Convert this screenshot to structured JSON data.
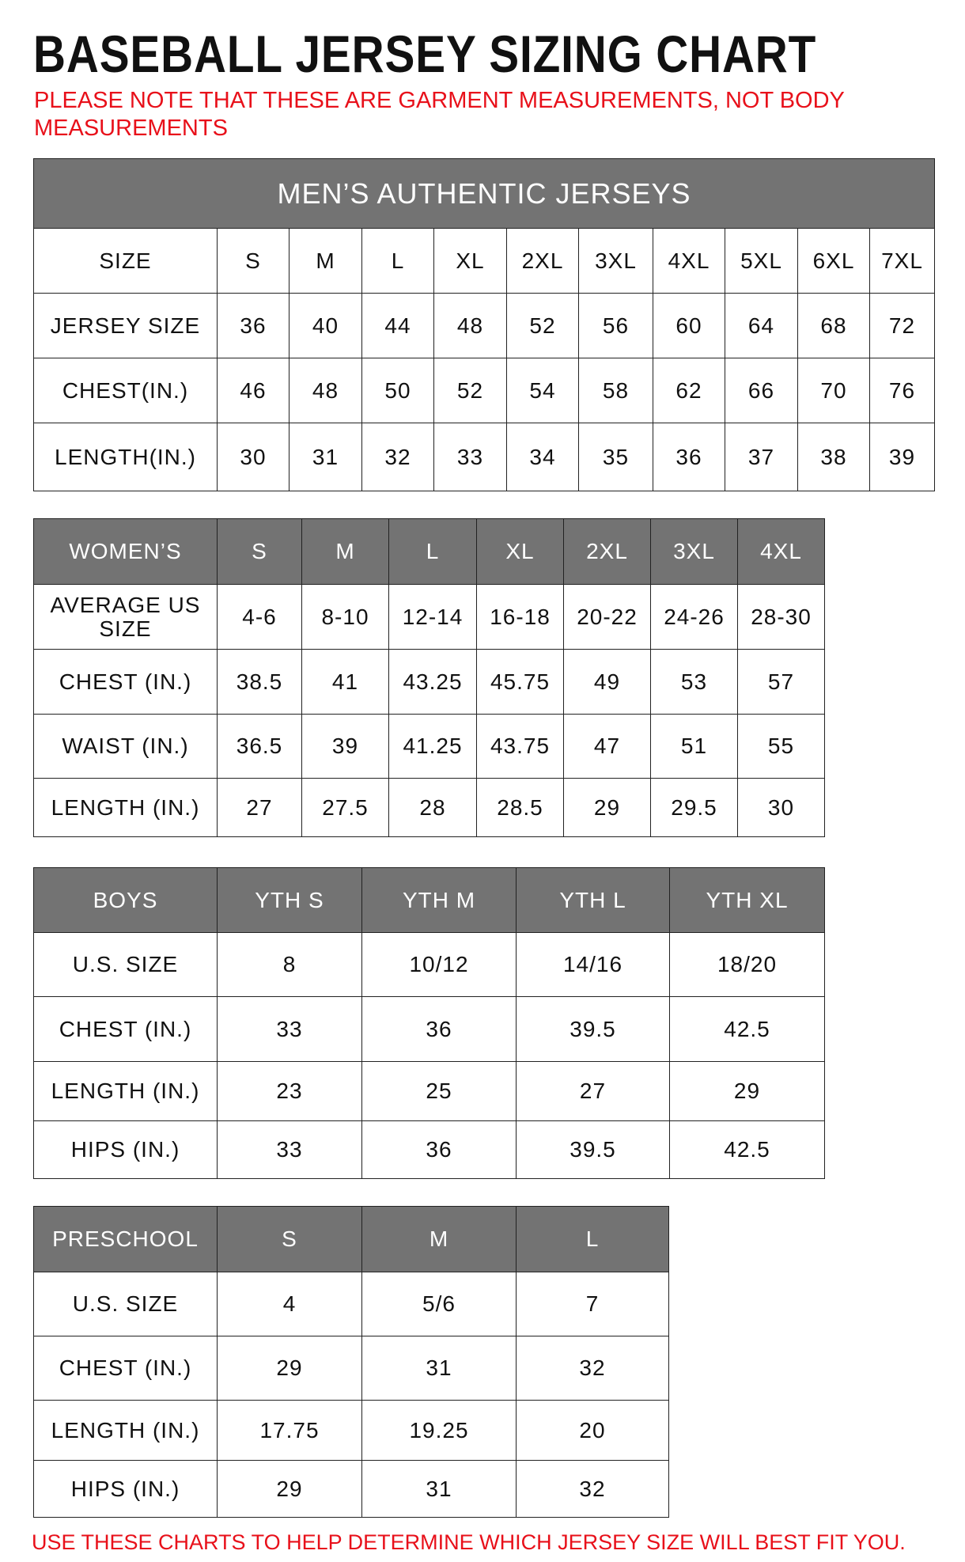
{
  "title": "BASEBALL JERSEY SIZING CHART",
  "note": "PLEASE NOTE THAT THESE ARE GARMENT MEASUREMENTS, NOT BODY MEASUREMENTS",
  "footer": "USE THESE CHARTS TO HELP DETERMINE WHICH JERSEY SIZE WILL BEST FIT YOU.",
  "colors": {
    "header_bg": "#737373",
    "note_red": "#e8101a"
  },
  "mens": {
    "caption": "MEN’S AUTHENTIC JERSEYS",
    "header": [
      "SIZE",
      "S",
      "M",
      "L",
      "XL",
      "2XL",
      "3XL",
      "4XL",
      "5XL",
      "6XL",
      "7XL"
    ],
    "rows": [
      [
        "JERSEY SIZE",
        "36",
        "40",
        "44",
        "48",
        "52",
        "56",
        "60",
        "64",
        "68",
        "72"
      ],
      [
        "CHEST(IN.)",
        "46",
        "48",
        "50",
        "52",
        "54",
        "58",
        "62",
        "66",
        "70",
        "76"
      ],
      [
        "LENGTH(IN.)",
        "30",
        "31",
        "32",
        "33",
        "34",
        "35",
        "36",
        "37",
        "38",
        "39"
      ]
    ]
  },
  "womens": {
    "header": [
      "WOMEN’S",
      "S",
      "M",
      "L",
      "XL",
      "2XL",
      "3XL",
      "4XL"
    ],
    "rows": [
      [
        "AVERAGE US SIZE",
        "4-6",
        "8-10",
        "12-14",
        "16-18",
        "20-22",
        "24-26",
        "28-30"
      ],
      [
        "CHEST (IN.)",
        "38.5",
        "41",
        "43.25",
        "45.75",
        "49",
        "53",
        "57"
      ],
      [
        "WAIST (IN.)",
        "36.5",
        "39",
        "41.25",
        "43.75",
        "47",
        "51",
        "55"
      ],
      [
        "LENGTH (IN.)",
        "27",
        "27.5",
        "28",
        "28.5",
        "29",
        "29.5",
        "30"
      ]
    ]
  },
  "boys": {
    "header": [
      "BOYS",
      "YTH S",
      "YTH M",
      "YTH L",
      "YTH XL"
    ],
    "rows": [
      [
        "U.S. SIZE",
        "8",
        "10/12",
        "14/16",
        "18/20"
      ],
      [
        "CHEST (IN.)",
        "33",
        "36",
        "39.5",
        "42.5"
      ],
      [
        "LENGTH (IN.)",
        "23",
        "25",
        "27",
        "29"
      ],
      [
        "HIPS (IN.)",
        "33",
        "36",
        "39.5",
        "42.5"
      ]
    ]
  },
  "preschool": {
    "header": [
      "PRESCHOOL",
      "S",
      "M",
      "L"
    ],
    "rows": [
      [
        "U.S. SIZE",
        "4",
        "5/6",
        "7"
      ],
      [
        "CHEST (IN.)",
        "29",
        "31",
        "32"
      ],
      [
        "LENGTH (IN.)",
        "17.75",
        "19.25",
        "20"
      ],
      [
        "HIPS (IN.)",
        "29",
        "31",
        "32"
      ]
    ]
  }
}
